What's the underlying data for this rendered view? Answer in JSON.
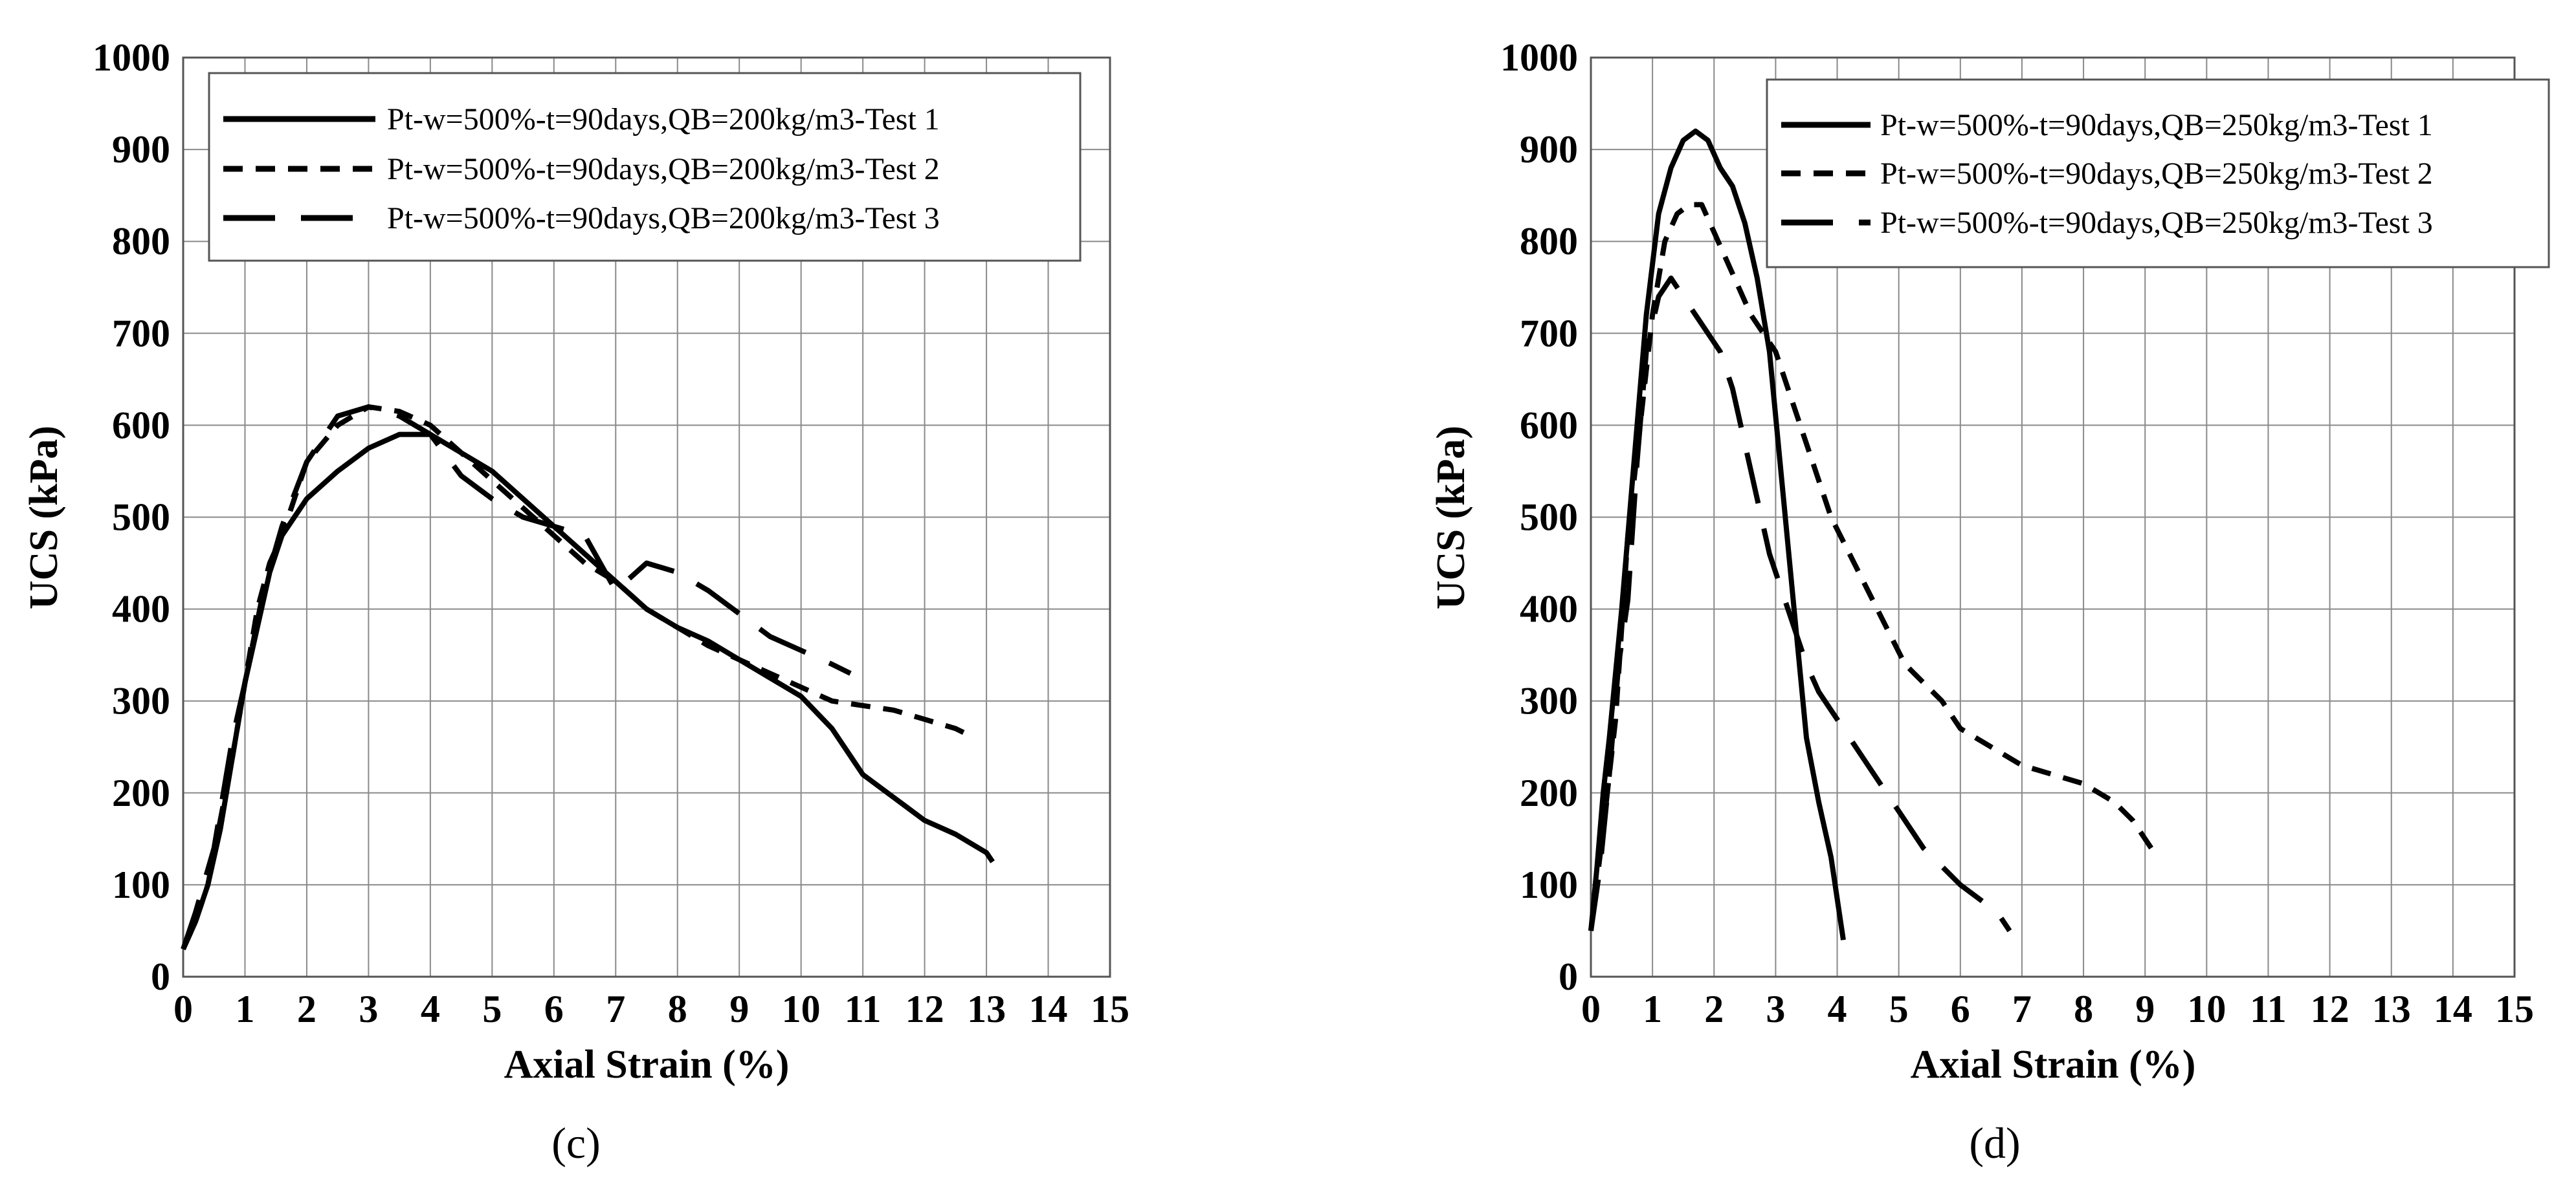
{
  "chart_data": [
    {
      "type": "line",
      "panel_label": "(c)",
      "xlabel": "Axial Strain (%)",
      "ylabel": "UCS (kPa)",
      "xlim": [
        0,
        15
      ],
      "ylim": [
        0,
        1000
      ],
      "xticks": [
        0,
        1,
        2,
        3,
        4,
        5,
        6,
        7,
        8,
        9,
        10,
        11,
        12,
        13,
        14,
        15
      ],
      "yticks": [
        0,
        100,
        200,
        300,
        400,
        500,
        600,
        700,
        800,
        900,
        1000
      ],
      "grid": true,
      "legend_position": "top-left",
      "series": [
        {
          "name": "Pt-w=500%-t=90days,QB=200kg/m3-Test 1",
          "style": "solid",
          "points": [
            [
              0,
              30
            ],
            [
              0.2,
              60
            ],
            [
              0.4,
              100
            ],
            [
              0.6,
              160
            ],
            [
              0.8,
              240
            ],
            [
              1.0,
              320
            ],
            [
              1.2,
              380
            ],
            [
              1.4,
              440
            ],
            [
              1.6,
              480
            ],
            [
              1.8,
              500
            ],
            [
              2.0,
              520
            ],
            [
              2.5,
              550
            ],
            [
              3.0,
              575
            ],
            [
              3.5,
              590
            ],
            [
              4.0,
              590
            ],
            [
              4.5,
              570
            ],
            [
              5.0,
              550
            ],
            [
              5.5,
              520
            ],
            [
              6.0,
              490
            ],
            [
              6.5,
              460
            ],
            [
              7.0,
              430
            ],
            [
              7.5,
              400
            ],
            [
              8.0,
              380
            ],
            [
              8.5,
              365
            ],
            [
              9.0,
              345
            ],
            [
              9.5,
              325
            ],
            [
              10.0,
              305
            ],
            [
              10.5,
              270
            ],
            [
              11.0,
              220
            ],
            [
              11.5,
              195
            ],
            [
              12.0,
              170
            ],
            [
              12.5,
              155
            ],
            [
              13.0,
              135
            ],
            [
              13.1,
              125
            ]
          ]
        },
        {
          "name": "Pt-w=500%-t=90days,QB=200kg/m3-Test 2",
          "style": "dashed",
          "points": [
            [
              0,
              30
            ],
            [
              0.2,
              60
            ],
            [
              0.4,
              100
            ],
            [
              0.6,
              170
            ],
            [
              0.8,
              240
            ],
            [
              1.0,
              320
            ],
            [
              1.2,
              400
            ],
            [
              1.4,
              450
            ],
            [
              1.6,
              480
            ],
            [
              1.8,
              520
            ],
            [
              2.0,
              560
            ],
            [
              2.5,
              600
            ],
            [
              3.0,
              620
            ],
            [
              3.5,
              615
            ],
            [
              4.0,
              600
            ],
            [
              4.5,
              570
            ],
            [
              5.0,
              540
            ],
            [
              5.5,
              510
            ],
            [
              6.0,
              480
            ],
            [
              6.5,
              450
            ],
            [
              7.0,
              430
            ],
            [
              7.5,
              400
            ],
            [
              8.0,
              380
            ],
            [
              8.5,
              360
            ],
            [
              9.0,
              345
            ],
            [
              9.5,
              330
            ],
            [
              10.0,
              315
            ],
            [
              10.5,
              300
            ],
            [
              11.0,
              295
            ],
            [
              11.5,
              290
            ],
            [
              12.0,
              280
            ],
            [
              12.5,
              270
            ],
            [
              12.8,
              260
            ]
          ]
        },
        {
          "name": "Pt-w=500%-t=90days,QB=200kg/m3-Test 3",
          "style": "longdash",
          "points": [
            [
              0,
              30
            ],
            [
              0.2,
              70
            ],
            [
              0.5,
              140
            ],
            [
              0.8,
              260
            ],
            [
              1.0,
              320
            ],
            [
              1.3,
              420
            ],
            [
              1.6,
              490
            ],
            [
              2.0,
              560
            ],
            [
              2.5,
              610
            ],
            [
              3.0,
              620
            ],
            [
              3.5,
              610
            ],
            [
              4.0,
              590
            ],
            [
              4.5,
              545
            ],
            [
              5.0,
              520
            ],
            [
              5.5,
              500
            ],
            [
              6.0,
              490
            ],
            [
              6.5,
              480
            ],
            [
              7.0,
              420
            ],
            [
              7.5,
              450
            ],
            [
              8.0,
              440
            ],
            [
              8.5,
              420
            ],
            [
              9.0,
              395
            ],
            [
              9.5,
              370
            ],
            [
              10.0,
              355
            ],
            [
              10.5,
              340
            ],
            [
              10.8,
              330
            ]
          ]
        }
      ]
    },
    {
      "type": "line",
      "panel_label": "(d)",
      "xlabel": "Axial Strain (%)",
      "ylabel": "UCS (kPa)",
      "xlim": [
        0,
        15
      ],
      "ylim": [
        0,
        1000
      ],
      "xticks": [
        0,
        1,
        2,
        3,
        4,
        5,
        6,
        7,
        8,
        9,
        10,
        11,
        12,
        13,
        14,
        15
      ],
      "yticks": [
        0,
        100,
        200,
        300,
        400,
        500,
        600,
        700,
        800,
        900,
        1000
      ],
      "grid": true,
      "legend_position": "top-right",
      "series": [
        {
          "name": "Pt-w=500%-t=90days,QB=250kg/m3-Test 1",
          "style": "solid",
          "points": [
            [
              0,
              50
            ],
            [
              0.1,
              120
            ],
            [
              0.2,
              200
            ],
            [
              0.3,
              260
            ],
            [
              0.5,
              400
            ],
            [
              0.7,
              560
            ],
            [
              0.9,
              720
            ],
            [
              1.1,
              830
            ],
            [
              1.3,
              880
            ],
            [
              1.5,
              910
            ],
            [
              1.7,
              920
            ],
            [
              1.9,
              910
            ],
            [
              2.1,
              880
            ],
            [
              2.3,
              860
            ],
            [
              2.5,
              820
            ],
            [
              2.7,
              760
            ],
            [
              2.9,
              680
            ],
            [
              3.1,
              540
            ],
            [
              3.3,
              400
            ],
            [
              3.5,
              260
            ],
            [
              3.7,
              190
            ],
            [
              3.9,
              130
            ],
            [
              4.1,
              40
            ]
          ]
        },
        {
          "name": "Pt-w=500%-t=90days,QB=250kg/m3-Test 2",
          "style": "dashed",
          "points": [
            [
              0,
              50
            ],
            [
              0.2,
              160
            ],
            [
              0.4,
              280
            ],
            [
              0.6,
              480
            ],
            [
              0.8,
              600
            ],
            [
              1.0,
              720
            ],
            [
              1.2,
              800
            ],
            [
              1.4,
              830
            ],
            [
              1.6,
              840
            ],
            [
              1.8,
              840
            ],
            [
              2.0,
              810
            ],
            [
              2.2,
              780
            ],
            [
              2.4,
              750
            ],
            [
              2.6,
              720
            ],
            [
              2.8,
              700
            ],
            [
              3.0,
              680
            ],
            [
              3.3,
              620
            ],
            [
              3.6,
              560
            ],
            [
              3.9,
              500
            ],
            [
              4.2,
              460
            ],
            [
              4.5,
              420
            ],
            [
              4.8,
              380
            ],
            [
              5.1,
              340
            ],
            [
              5.4,
              320
            ],
            [
              5.7,
              300
            ],
            [
              6.0,
              270
            ],
            [
              6.5,
              250
            ],
            [
              7.0,
              230
            ],
            [
              7.5,
              220
            ],
            [
              8.0,
              210
            ],
            [
              8.5,
              190
            ],
            [
              8.8,
              170
            ],
            [
              9.1,
              140
            ]
          ]
        },
        {
          "name": "Pt-w=500%-t=90days,QB=250kg/m3-Test 3",
          "style": "longdash",
          "points": [
            [
              0,
              50
            ],
            [
              0.15,
              120
            ],
            [
              0.3,
              220
            ],
            [
              0.45,
              340
            ],
            [
              0.6,
              410
            ],
            [
              0.75,
              560
            ],
            [
              0.9,
              680
            ],
            [
              1.1,
              740
            ],
            [
              1.3,
              760
            ],
            [
              1.5,
              740
            ],
            [
              1.7,
              720
            ],
            [
              1.9,
              700
            ],
            [
              2.1,
              680
            ],
            [
              2.3,
              640
            ],
            [
              2.5,
              580
            ],
            [
              2.7,
              520
            ],
            [
              2.9,
              460
            ],
            [
              3.1,
              420
            ],
            [
              3.3,
              380
            ],
            [
              3.5,
              340
            ],
            [
              3.7,
              310
            ],
            [
              3.9,
              290
            ],
            [
              4.2,
              260
            ],
            [
              4.5,
              230
            ],
            [
              4.8,
              200
            ],
            [
              5.1,
              170
            ],
            [
              5.4,
              140
            ],
            [
              5.7,
              120
            ],
            [
              6.0,
              100
            ],
            [
              6.3,
              85
            ],
            [
              6.6,
              70
            ],
            [
              6.8,
              50
            ]
          ]
        }
      ]
    }
  ]
}
